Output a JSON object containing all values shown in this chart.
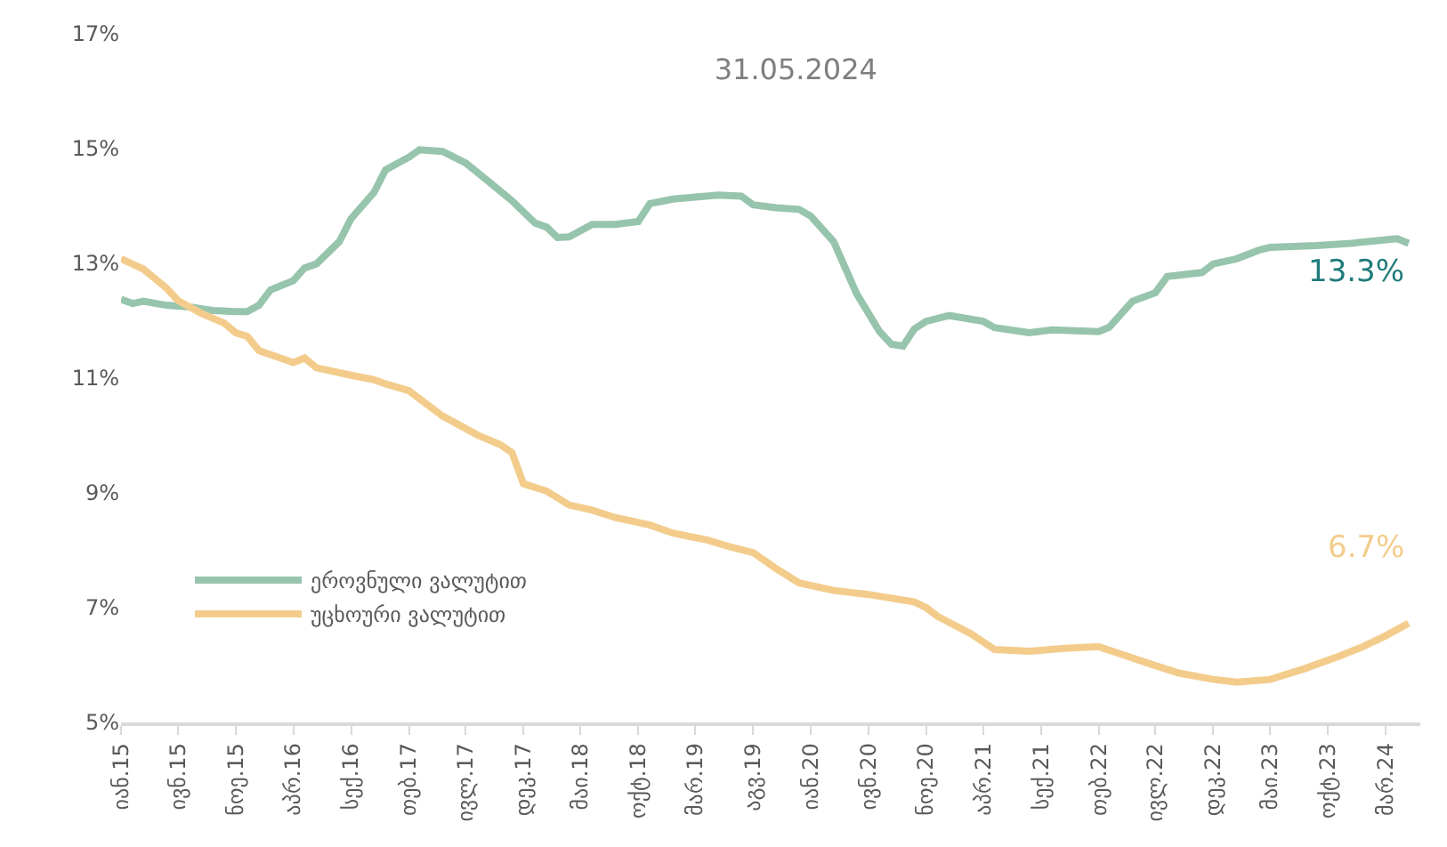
{
  "chart_data": {
    "type": "line",
    "title": "31.05.2024",
    "xlim": [
      "2015-01",
      "2024-06"
    ],
    "xticks": [
      {
        "value": "2015-01",
        "label": "იან.15"
      },
      {
        "value": "2015-06",
        "label": "ივნ.15"
      },
      {
        "value": "2015-11",
        "label": "ნოე.15"
      },
      {
        "value": "2016-04",
        "label": "აპრ.16"
      },
      {
        "value": "2016-09",
        "label": "სექ.16"
      },
      {
        "value": "2017-02",
        "label": "თებ.17"
      },
      {
        "value": "2017-07",
        "label": "ივლ.17"
      },
      {
        "value": "2017-12",
        "label": "დეკ.17"
      },
      {
        "value": "2018-05",
        "label": "მაი.18"
      },
      {
        "value": "2018-10",
        "label": "ოქტ.18"
      },
      {
        "value": "2019-03",
        "label": "მარ.19"
      },
      {
        "value": "2019-08",
        "label": "აგვ.19"
      },
      {
        "value": "2020-01",
        "label": "იან.20"
      },
      {
        "value": "2020-06",
        "label": "ივნ.20"
      },
      {
        "value": "2020-11",
        "label": "ნოე.20"
      },
      {
        "value": "2021-04",
        "label": "აპრ.21"
      },
      {
        "value": "2021-09",
        "label": "სექ.21"
      },
      {
        "value": "2022-02",
        "label": "თებ.22"
      },
      {
        "value": "2022-07",
        "label": "ივლ.22"
      },
      {
        "value": "2022-12",
        "label": "დეკ.22"
      },
      {
        "value": "2023-05",
        "label": "მაი.23"
      },
      {
        "value": "2023-10",
        "label": "ოქტ.23"
      },
      {
        "value": "2024-03",
        "label": "მარ.24"
      }
    ],
    "ylim": [
      5,
      17
    ],
    "yticks": [
      {
        "value": 5,
        "label": "5%"
      },
      {
        "value": 7,
        "label": "7%"
      },
      {
        "value": 9,
        "label": "9%"
      },
      {
        "value": 11,
        "label": "11%"
      },
      {
        "value": 13,
        "label": "13%"
      },
      {
        "value": 15,
        "label": "15%"
      },
      {
        "value": 17,
        "label": "17%"
      }
    ],
    "grid": false,
    "legend": "bottom left",
    "marker": "none",
    "line_style": "solid",
    "series": [
      {
        "name": "ეროვნული ვალუტით",
        "color": "#97c4ac",
        "x": [
          "2015-01",
          "2015-02",
          "2015-03",
          "2015-05",
          "2015-07",
          "2015-09",
          "2015-11",
          "2015-12",
          "2016-01",
          "2016-02",
          "2016-04",
          "2016-05",
          "2016-06",
          "2016-08",
          "2016-09",
          "2016-11",
          "2016-12",
          "2017-02",
          "2017-03",
          "2017-05",
          "2017-07",
          "2017-09",
          "2017-11",
          "2018-01",
          "2018-02",
          "2018-03",
          "2018-04",
          "2018-06",
          "2018-08",
          "2018-10",
          "2018-11",
          "2019-01",
          "2019-05",
          "2019-07",
          "2019-08",
          "2019-10",
          "2019-12",
          "2020-01",
          "2020-03",
          "2020-05",
          "2020-07",
          "2020-08",
          "2020-09",
          "2020-10",
          "2020-11",
          "2021-01",
          "2021-04",
          "2021-05",
          "2021-08",
          "2021-10",
          "2022-02",
          "2022-03",
          "2022-05",
          "2022-07",
          "2022-08",
          "2022-11",
          "2022-12",
          "2023-02",
          "2023-04",
          "2023-05",
          "2023-09",
          "2023-12",
          "2024-04",
          "2024-05"
        ],
        "values": [
          12.37,
          12.3,
          12.34,
          12.27,
          12.24,
          12.18,
          12.16,
          12.16,
          12.27,
          12.54,
          12.7,
          12.92,
          12.99,
          13.38,
          13.78,
          14.24,
          14.63,
          14.85,
          14.98,
          14.95,
          14.75,
          14.42,
          14.09,
          13.7,
          13.63,
          13.45,
          13.46,
          13.68,
          13.68,
          13.73,
          14.04,
          14.12,
          14.19,
          14.17,
          14.02,
          13.97,
          13.94,
          13.82,
          13.38,
          12.47,
          11.81,
          11.59,
          11.56,
          11.86,
          11.99,
          12.09,
          11.99,
          11.88,
          11.79,
          11.84,
          11.81,
          11.89,
          12.34,
          12.49,
          12.77,
          12.84,
          12.99,
          13.08,
          13.23,
          13.28,
          13.31,
          13.35,
          13.43,
          13.35
        ]
      },
      {
        "name": "უცხოური ვალუტით",
        "color": "#f3cc8c",
        "x": [
          "2015-01",
          "2015-03",
          "2015-05",
          "2015-06",
          "2015-08",
          "2015-10",
          "2015-11",
          "2015-12",
          "2016-01",
          "2016-04",
          "2016-05",
          "2016-06",
          "2016-09",
          "2016-11",
          "2016-12",
          "2017-02",
          "2017-05",
          "2017-08",
          "2017-10",
          "2017-11",
          "2017-12",
          "2018-02",
          "2018-04",
          "2018-06",
          "2018-08",
          "2018-11",
          "2019-01",
          "2019-04",
          "2019-06",
          "2019-08",
          "2019-10",
          "2019-12",
          "2020-03",
          "2020-06",
          "2020-10",
          "2020-11",
          "2020-12",
          "2021-03",
          "2021-05",
          "2021-08",
          "2021-11",
          "2022-02",
          "2022-04",
          "2022-07",
          "2022-09",
          "2022-12",
          "2023-02",
          "2023-05",
          "2023-08",
          "2023-11",
          "2024-01",
          "2024-03",
          "2024-05"
        ],
        "values": [
          13.08,
          12.9,
          12.57,
          12.35,
          12.13,
          11.96,
          11.79,
          11.73,
          11.48,
          11.27,
          11.35,
          11.18,
          11.05,
          10.97,
          10.9,
          10.78,
          10.34,
          10.01,
          9.84,
          9.7,
          9.16,
          9.03,
          8.79,
          8.7,
          8.57,
          8.44,
          8.3,
          8.18,
          8.06,
          7.96,
          7.68,
          7.43,
          7.3,
          7.23,
          7.1,
          7.0,
          6.85,
          6.54,
          6.27,
          6.24,
          6.29,
          6.32,
          6.19,
          5.99,
          5.86,
          5.75,
          5.7,
          5.75,
          5.94,
          6.16,
          6.32,
          6.51,
          6.73
        ]
      }
    ],
    "annotations": [
      {
        "text": "13.3%",
        "x": "2024-05",
        "y": 13.35
      },
      {
        "text": "6.7%",
        "x": "2024-05",
        "y": 6.73
      }
    ]
  }
}
